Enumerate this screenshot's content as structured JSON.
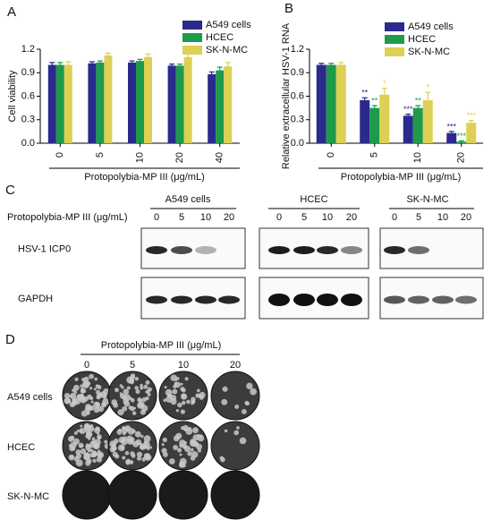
{
  "panel_labels": [
    "A",
    "B",
    "C",
    "D"
  ],
  "chart_data": [
    {
      "type": "bar",
      "ylabel": "Cell viability",
      "xlabel": "Protopolybia-MP III (μg/mL)",
      "categories": [
        "0",
        "5",
        "10",
        "20",
        "40"
      ],
      "series": [
        {
          "name": "A549 cells",
          "color": "#2a2a8c",
          "values": [
            1.0,
            1.02,
            1.03,
            0.99,
            0.88
          ],
          "errors": [
            0.03,
            0.02,
            0.02,
            0.02,
            0.03
          ]
        },
        {
          "name": "HCEC",
          "color": "#1e9a4b",
          "values": [
            1.0,
            1.03,
            1.05,
            0.99,
            0.93
          ],
          "errors": [
            0.03,
            0.02,
            0.02,
            0.02,
            0.04
          ]
        },
        {
          "name": "SK-N-MC",
          "color": "#ddd055",
          "values": [
            1.0,
            1.12,
            1.1,
            1.1,
            0.98
          ],
          "errors": [
            0.04,
            0.03,
            0.04,
            0.06,
            0.05
          ]
        }
      ],
      "ylim": [
        0,
        1.2
      ],
      "yticks": [
        {
          "value": 0,
          "label": "0.0"
        },
        0.3,
        0.6,
        0.9,
        1.2
      ]
    },
    {
      "type": "bar",
      "ylabel": "Relative extracellular HSV-1 RNA",
      "xlabel": "Protopolybia-MP III (μg/mL)",
      "categories": [
        "0",
        "5",
        "10",
        "20"
      ],
      "series": [
        {
          "name": "A549 cells",
          "color": "#2a2a8c",
          "values": [
            1.0,
            0.55,
            0.35,
            0.13
          ],
          "errors": [
            0.02,
            0.03,
            0.02,
            0.02
          ],
          "annotations": [
            null,
            "**",
            "***",
            "***"
          ]
        },
        {
          "name": "HCEC",
          "color": "#1e9a4b",
          "values": [
            1.0,
            0.45,
            0.45,
            0.02
          ],
          "errors": [
            0.02,
            0.03,
            0.03,
            0.01
          ],
          "annotations": [
            null,
            "**",
            "**",
            "***"
          ]
        },
        {
          "name": "SK-N-MC",
          "color": "#ddd055",
          "values": [
            1.0,
            0.62,
            0.55,
            0.26
          ],
          "errors": [
            0.03,
            0.08,
            0.1,
            0.03
          ],
          "annotations": [
            null,
            "*",
            "*",
            "***"
          ]
        }
      ],
      "ylim": [
        0,
        1.2
      ],
      "yticks": [
        {
          "value": 0,
          "label": "0.0"
        },
        0.3,
        0.6,
        0.9,
        1.2
      ]
    }
  ],
  "blot": {
    "treatment": "Protopolybia-MP III (μg/mL)",
    "groups": [
      "A549 cells",
      "HCEC",
      "SK-N-MC"
    ],
    "concentrations": [
      "0",
      "5",
      "10",
      "20"
    ],
    "rows": [
      "HSV-1 ICP0",
      "GAPDH"
    ]
  },
  "plaque": {
    "treatment": "Protopolybia-MP III (μg/mL)",
    "concentrations": [
      "0",
      "5",
      "10",
      "20"
    ],
    "rows": [
      "A549 cells",
      "HCEC",
      "SK-N-MC"
    ]
  }
}
